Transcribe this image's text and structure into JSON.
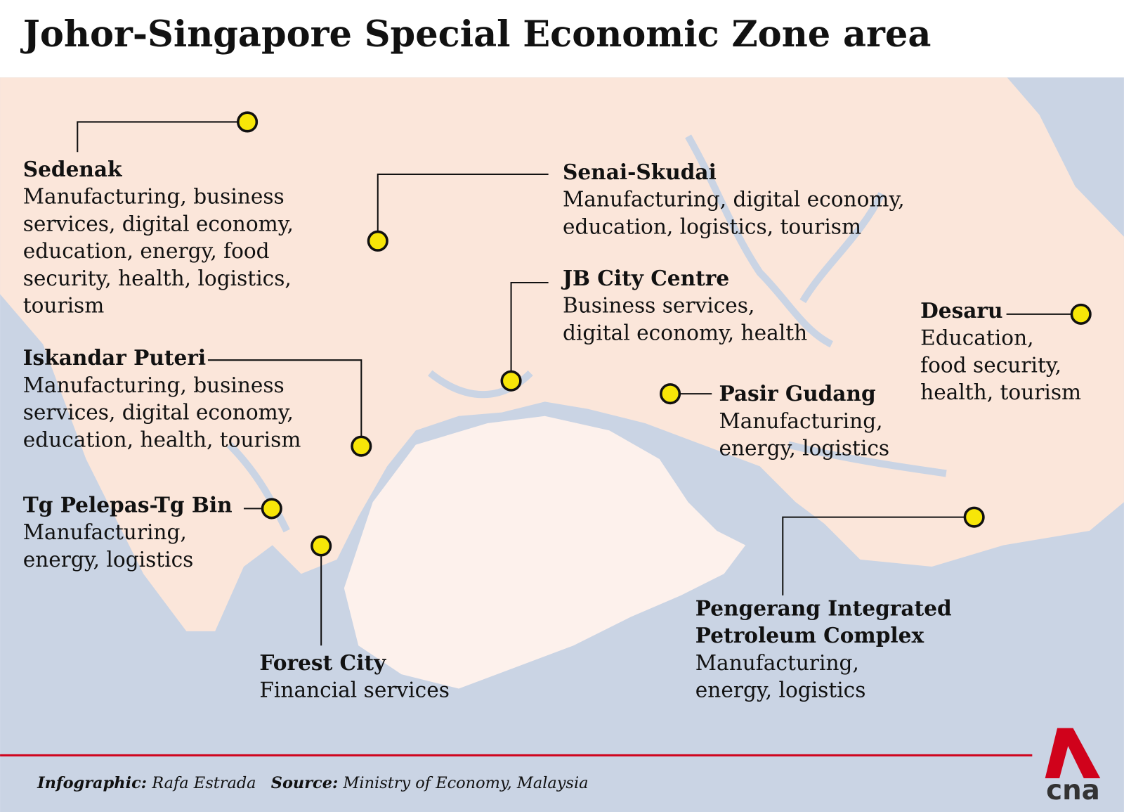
{
  "title": "Johor-Singapore Special Economic Zone area",
  "locations": [
    {
      "name": "Sedenak",
      "lines": [
        "Manufacturing, business",
        "services, digital economy,",
        "education, energy, food",
        "security, health, logistics,",
        "tourism"
      ]
    },
    {
      "name": "Senai-Skudai",
      "lines": [
        "Manufacturing, digital economy,",
        "education, logistics, tourism"
      ]
    },
    {
      "name": "JB City Centre",
      "lines": [
        "Business services,",
        "digital economy, health"
      ]
    },
    {
      "name": "Desaru",
      "lines": [
        "Education,",
        "food security,",
        "health, tourism"
      ]
    },
    {
      "name": "Pasir Gudang",
      "lines": [
        "Manufacturing,",
        "energy, logistics"
      ]
    },
    {
      "name": "Iskandar Puteri",
      "lines": [
        "Manufacturing, business",
        "services, digital economy,",
        "education, health, tourism"
      ]
    },
    {
      "name": "Tg Pelepas-Tg Bin",
      "lines": [
        "Manufacturing,",
        "energy, logistics"
      ]
    },
    {
      "name": "Forest City",
      "lines": [
        "Financial services"
      ]
    },
    {
      "name": [
        "Pengerang Integrated",
        "Petroleum Complex"
      ],
      "lines": [
        "Manufacturing,",
        "energy, logistics"
      ]
    }
  ],
  "footer": {
    "infographic_label": "Infographic:",
    "infographic_by": "Rafa Estrada",
    "source_label": "Source:",
    "source": "Ministry of Economy, Malaysia"
  },
  "logo": "cna"
}
